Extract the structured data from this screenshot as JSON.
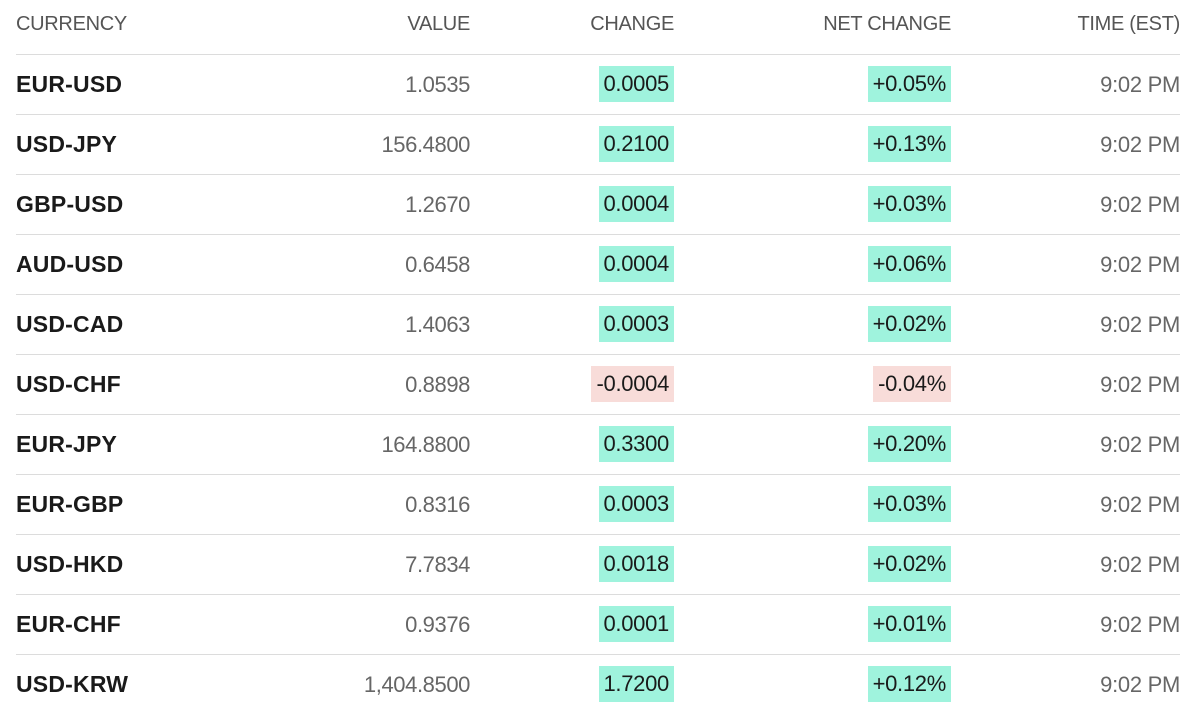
{
  "colors": {
    "positive_bg": "#9ff3dd",
    "negative_bg": "#f8dcd9"
  },
  "header": {
    "currency": "CURRENCY",
    "value": "VALUE",
    "change": "CHANGE",
    "net_change": "NET CHANGE",
    "time": "TIME (EST)"
  },
  "rows": [
    {
      "currency": "EUR-USD",
      "value": "1.0535",
      "change": "0.0005",
      "net_change": "+0.05%",
      "time": "9:02 PM",
      "direction": "pos"
    },
    {
      "currency": "USD-JPY",
      "value": "156.4800",
      "change": "0.2100",
      "net_change": "+0.13%",
      "time": "9:02 PM",
      "direction": "pos"
    },
    {
      "currency": "GBP-USD",
      "value": "1.2670",
      "change": "0.0004",
      "net_change": "+0.03%",
      "time": "9:02 PM",
      "direction": "pos"
    },
    {
      "currency": "AUD-USD",
      "value": "0.6458",
      "change": "0.0004",
      "net_change": "+0.06%",
      "time": "9:02 PM",
      "direction": "pos"
    },
    {
      "currency": "USD-CAD",
      "value": "1.4063",
      "change": "0.0003",
      "net_change": "+0.02%",
      "time": "9:02 PM",
      "direction": "pos"
    },
    {
      "currency": "USD-CHF",
      "value": "0.8898",
      "change": "-0.0004",
      "net_change": "-0.04%",
      "time": "9:02 PM",
      "direction": "neg"
    },
    {
      "currency": "EUR-JPY",
      "value": "164.8800",
      "change": "0.3300",
      "net_change": "+0.20%",
      "time": "9:02 PM",
      "direction": "pos"
    },
    {
      "currency": "EUR-GBP",
      "value": "0.8316",
      "change": "0.0003",
      "net_change": "+0.03%",
      "time": "9:02 PM",
      "direction": "pos"
    },
    {
      "currency": "USD-HKD",
      "value": "7.7834",
      "change": "0.0018",
      "net_change": "+0.02%",
      "time": "9:02 PM",
      "direction": "pos"
    },
    {
      "currency": "EUR-CHF",
      "value": "0.9376",
      "change": "0.0001",
      "net_change": "+0.01%",
      "time": "9:02 PM",
      "direction": "pos"
    },
    {
      "currency": "USD-KRW",
      "value": "1,404.8500",
      "change": "1.7200",
      "net_change": "+0.12%",
      "time": "9:02 PM",
      "direction": "pos"
    }
  ]
}
